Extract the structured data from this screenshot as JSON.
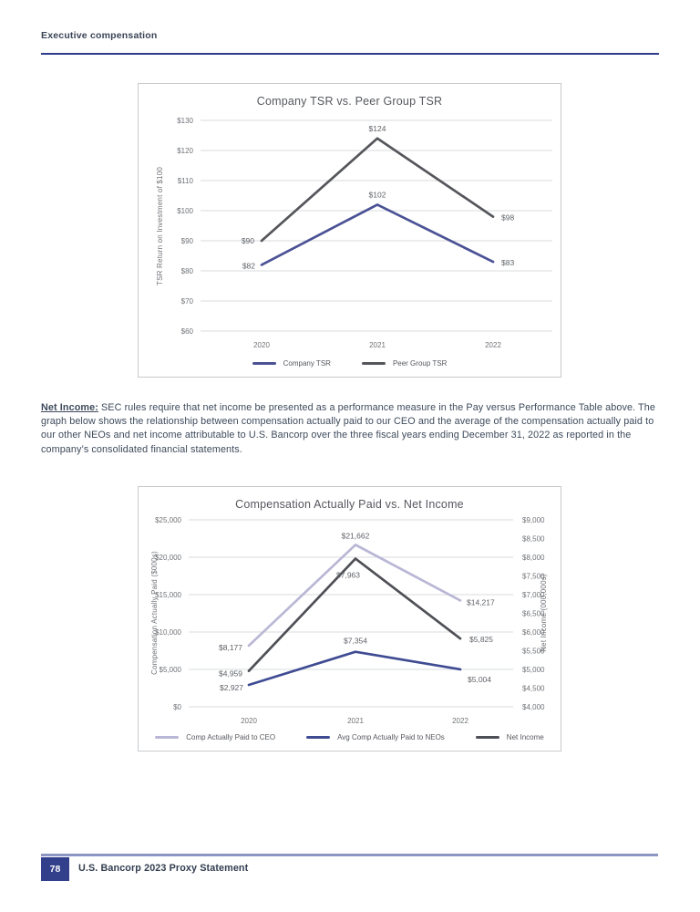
{
  "page": {
    "header": {
      "title": "Executive compensation"
    },
    "intro": {
      "lead": "Net Income:",
      "body": " SEC rules require that net income be presented as a performance measure in the Pay versus Performance Table above. The graph below shows the relationship between compensation actually paid to our CEO and the average of the compensation actually paid to our other NEOs and net income attributable to U.S. Bancorp over the three fiscal years ending December 31, 2022 as reported in the company’s consolidated financial statements."
    },
    "footer": {
      "page_number": "78",
      "label": "U.S. Bancorp 2023 Proxy Statement"
    }
  },
  "colors": {
    "accent_navy": "#2e3c8e",
    "gridline": "#dadbdc",
    "tick_text": "#6f7277",
    "footer_rule": "#8d96c3"
  },
  "chart_data": [
    {
      "type": "line",
      "title": "Company TSR vs. Peer Group TSR",
      "ylabel": "TSR Return on Investment of $100",
      "categories": [
        "2020",
        "2021",
        "2022"
      ],
      "grid": true,
      "legend_position": "bottom",
      "left_axis": {
        "min": 60,
        "max": 130,
        "gridlines": true,
        "ticks": [
          {
            "label": "$130",
            "v": 130
          },
          {
            "label": "$120",
            "v": 120
          },
          {
            "label": "$110",
            "v": 110
          },
          {
            "label": "$100",
            "v": 100
          },
          {
            "label": "$90",
            "v": 90
          },
          {
            "label": "$80",
            "v": 80
          },
          {
            "label": "$70",
            "v": 70
          },
          {
            "label": "$60",
            "v": 60
          }
        ]
      },
      "series": [
        {
          "name": "Company TSR",
          "color": "#4a5295",
          "axis": "left",
          "values": [
            82,
            102,
            83
          ],
          "labels": [
            "$82",
            "$102",
            "$83"
          ],
          "label_pos": [
            [
              -7,
              4,
              "end"
            ],
            [
              0,
              -8,
              "middle"
            ],
            [
              9,
              4,
              "start"
            ]
          ]
        },
        {
          "name": "Peer Group TSR",
          "color": "#55565b",
          "axis": "left",
          "values": [
            90,
            124,
            98
          ],
          "labels": [
            "$90",
            "$124",
            "$98"
          ],
          "label_pos": [
            [
              -8,
              3,
              "end"
            ],
            [
              0,
              -8,
              "middle"
            ],
            [
              9,
              4,
              "start"
            ]
          ]
        }
      ]
    },
    {
      "type": "line",
      "title": "Compensation Actually Paid vs. Net Income",
      "ylabel": "Compensation Actually Paid ($000s)",
      "ylabel_right": "Net Income (000,000s)",
      "categories": [
        "2020",
        "2021",
        "2022"
      ],
      "grid": true,
      "legend_position": "bottom",
      "left_axis": {
        "min": 0,
        "max": 25000,
        "gridlines": true,
        "ticks": [
          {
            "label": "$25,000",
            "v": 25000
          },
          {
            "label": "$20,000",
            "v": 20000
          },
          {
            "label": "$15,000",
            "v": 15000
          },
          {
            "label": "$10,000",
            "v": 10000
          },
          {
            "label": "$5,000",
            "v": 5000
          },
          {
            "label": "$0",
            "v": 0
          }
        ]
      },
      "right_axis": {
        "min": 4000,
        "max": 9000,
        "gridlines": false,
        "ticks": [
          {
            "label": "$9,000",
            "v": 9000
          },
          {
            "label": "$8,500",
            "v": 8500
          },
          {
            "label": "$8,000",
            "v": 8000
          },
          {
            "label": "$7,500",
            "v": 7500
          },
          {
            "label": "$7,000",
            "v": 7000
          },
          {
            "label": "$6,500",
            "v": 6500
          },
          {
            "label": "$6,000",
            "v": 6000
          },
          {
            "label": "$5,500",
            "v": 5500
          },
          {
            "label": "$5,000",
            "v": 5000
          },
          {
            "label": "$4,500",
            "v": 4500
          },
          {
            "label": "$4,000",
            "v": 4000
          }
        ]
      },
      "series": [
        {
          "name": "Comp Actually Paid to CEO",
          "color": "#b9b7d5",
          "axis": "left",
          "values": [
            8177,
            21662,
            14217
          ],
          "labels": [
            "$8,177",
            "$21,662",
            "$14,217"
          ],
          "label_pos": [
            [
              -7,
              5,
              "end"
            ],
            [
              0,
              -7,
              "middle"
            ],
            [
              7,
              5,
              "start"
            ]
          ]
        },
        {
          "name": "Avg Comp Actually Paid to NEOs",
          "color": "#3f4c93",
          "axis": "left",
          "values": [
            2927,
            7354,
            5004
          ],
          "labels": [
            "$2,927",
            "$7,354",
            "$5,004"
          ],
          "label_pos": [
            [
              -6,
              6,
              "end"
            ],
            [
              0,
              -9,
              "middle"
            ],
            [
              8,
              14,
              "start"
            ]
          ]
        },
        {
          "name": "Net Income",
          "color": "#4e5056",
          "axis": "right",
          "values": [
            4959,
            7963,
            5825
          ],
          "labels": [
            "$4,959",
            "$7,963",
            "$5,825"
          ],
          "label_pos": [
            [
              -7,
              6,
              "end"
            ],
            [
              -8,
              21,
              "middle"
            ],
            [
              10,
              4,
              "start"
            ]
          ]
        }
      ]
    }
  ]
}
